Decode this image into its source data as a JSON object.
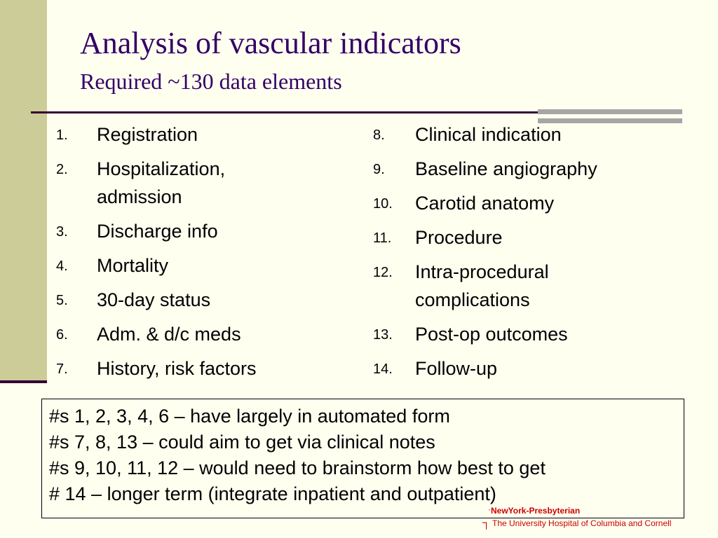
{
  "slide": {
    "title": "Analysis of vascular indicators",
    "subtitle": "Required ~130 data elements"
  },
  "left_list": [
    {
      "num": "1.",
      "text": "Registration"
    },
    {
      "num": "2.",
      "text": "Hospitalization, admission"
    },
    {
      "num": "3.",
      "text": "Discharge info"
    },
    {
      "num": "4.",
      "text": "Mortality"
    },
    {
      "num": "5.",
      "text": "30-day status"
    },
    {
      "num": "6.",
      "text": "Adm. & d/c meds"
    },
    {
      "num": "7.",
      "text": "History, risk factors"
    }
  ],
  "right_list": [
    {
      "num": "8.",
      "text": "Clinical indication"
    },
    {
      "num": "9.",
      "text": "Baseline angiography"
    },
    {
      "num": "10.",
      "text": "Carotid anatomy"
    },
    {
      "num": "11.",
      "text": "Procedure"
    },
    {
      "num": "12.",
      "text": "Intra-procedural complications"
    },
    {
      "num": "13.",
      "text": "Post-op outcomes"
    },
    {
      "num": "14.",
      "text": "Follow-up"
    }
  ],
  "notes": [
    "#s 1, 2, 3, 4, 6 – have largely in automated form",
    "#s 7, 8, 13 – could aim to get via clinical notes",
    "#s 9, 10, 11, 12 – would need to brainstorm how best to get",
    "# 14 – longer term (integrate inpatient and outpatient)"
  ],
  "footer": {
    "brand": "NewYork-Presbyterian",
    "tagline": "The University Hospital of Columbia and Cornell"
  },
  "colors": {
    "background": "#fffff0",
    "sidebar": "#cccc99",
    "title": "#330066",
    "rule": "#330033",
    "accent_bars": "#a6a6a6",
    "footer": "#cc0000"
  }
}
